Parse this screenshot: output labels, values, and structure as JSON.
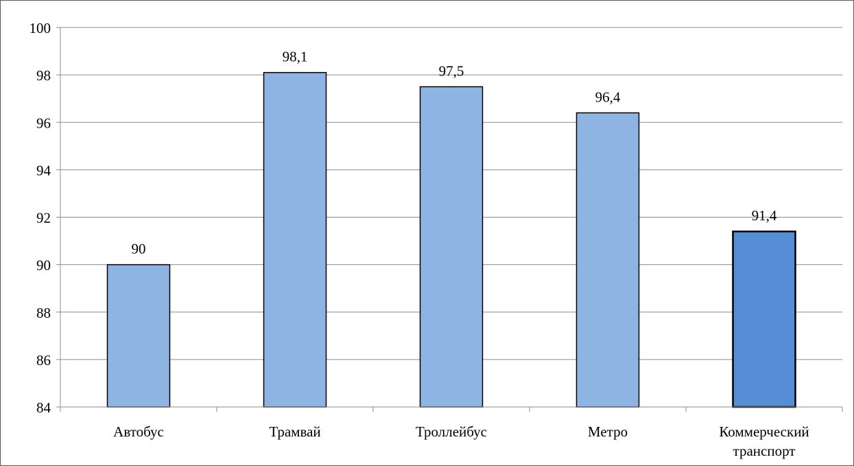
{
  "chart_data": {
    "type": "bar",
    "categories": [
      [
        "Автобус"
      ],
      [
        "Трамвай"
      ],
      [
        "Троллейбус"
      ],
      [
        "Метро"
      ],
      [
        "Коммерческий",
        "транспорт"
      ]
    ],
    "values": [
      90,
      98.1,
      97.5,
      96.4,
      91.4
    ],
    "data_labels": [
      "90",
      "98,1",
      "97,5",
      "96,4",
      "91,4"
    ],
    "ylim": [
      84,
      100
    ],
    "yticks": [
      84,
      86,
      88,
      90,
      92,
      94,
      96,
      98,
      100
    ],
    "grid": true,
    "legend": "none",
    "title": "",
    "xlabel": "",
    "ylabel": "",
    "colors": {
      "bar": "#8eb4e3",
      "highlight_bar": "#558ed5",
      "bar_border": "#000000",
      "grid": "#8c8c8c",
      "axis": "#8c8c8c"
    },
    "highlight_index": 4
  }
}
